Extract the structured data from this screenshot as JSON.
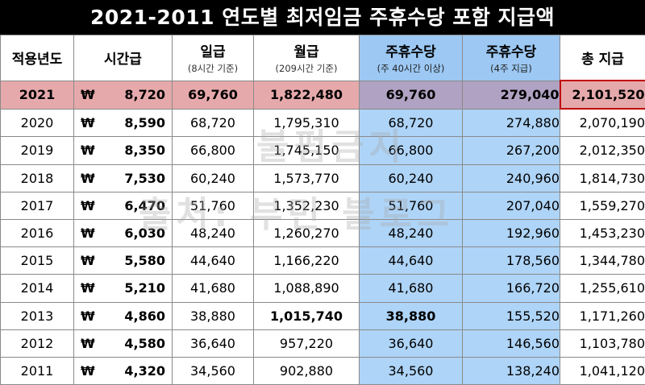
{
  "title": "2021-2011 연도별 최저임금 주휴수당 포함 지급액",
  "columns": [
    {
      "label": "적용년도",
      "sub": ""
    },
    {
      "label": "시간급",
      "sub": ""
    },
    {
      "label": "일급",
      "sub": "(8시간 기준)"
    },
    {
      "label": "월급",
      "sub": "(209시간 기준)"
    },
    {
      "label": "주휴수당",
      "sub": "(주 40시간 이상)"
    },
    {
      "label": "주휴수당",
      "sub": "(4주 지급)"
    },
    {
      "label": "총 지급",
      "sub": ""
    }
  ],
  "currency_symbol": "₩",
  "rows": [
    {
      "year": "2021",
      "hourly": "8,720",
      "daily": "69,760",
      "monthly": "1,822,480",
      "weekly_allowance": "69,760",
      "four_week_allowance": "279,040",
      "total": "2,101,520"
    },
    {
      "year": "2020",
      "hourly": "8,590",
      "daily": "68,720",
      "monthly": "1,795,310",
      "weekly_allowance": "68,720",
      "four_week_allowance": "274,880",
      "total": "2,070,190"
    },
    {
      "year": "2019",
      "hourly": "8,350",
      "daily": "66,800",
      "monthly": "1,745,150",
      "weekly_allowance": "66,800",
      "four_week_allowance": "267,200",
      "total": "2,012,350"
    },
    {
      "year": "2018",
      "hourly": "7,530",
      "daily": "60,240",
      "monthly": "1,573,770",
      "weekly_allowance": "60,240",
      "four_week_allowance": "240,960",
      "total": "1,814,730"
    },
    {
      "year": "2017",
      "hourly": "6,470",
      "daily": "51,760",
      "monthly": "1,352,230",
      "weekly_allowance": "51,760",
      "four_week_allowance": "207,040",
      "total": "1,559,270"
    },
    {
      "year": "2016",
      "hourly": "6,030",
      "daily": "48,240",
      "monthly": "1,260,270",
      "weekly_allowance": "48,240",
      "four_week_allowance": "192,960",
      "total": "1,453,230"
    },
    {
      "year": "2015",
      "hourly": "5,580",
      "daily": "44,640",
      "monthly": "1,166,220",
      "weekly_allowance": "44,640",
      "four_week_allowance": "178,560",
      "total": "1,344,780"
    },
    {
      "year": "2014",
      "hourly": "5,210",
      "daily": "41,680",
      "monthly": "1,088,890",
      "weekly_allowance": "41,680",
      "four_week_allowance": "166,720",
      "total": "1,255,610"
    },
    {
      "year": "2013",
      "hourly": "4,860",
      "daily": "38,880",
      "monthly": "1,015,740",
      "weekly_allowance": "38,880",
      "four_week_allowance": "155,520",
      "total": "1,171,260"
    },
    {
      "year": "2012",
      "hourly": "4,580",
      "daily": "36,640",
      "monthly": "957,220",
      "weekly_allowance": "36,640",
      "four_week_allowance": "146,560",
      "total": "1,103,780"
    },
    {
      "year": "2011",
      "hourly": "4,320",
      "daily": "34,560",
      "monthly": "902,880",
      "weekly_allowance": "34,560",
      "four_week_allowance": "138,240",
      "total": "1,041,120"
    }
  ],
  "watermark": {
    "line1": "불펌금지",
    "line2": "출처: 부민 블로그"
  },
  "colors": {
    "title_bg": "#000000",
    "highlight_row": "#e6a9ab",
    "allowance_column": "#aed4f7",
    "highlight_border": "#c00000"
  }
}
